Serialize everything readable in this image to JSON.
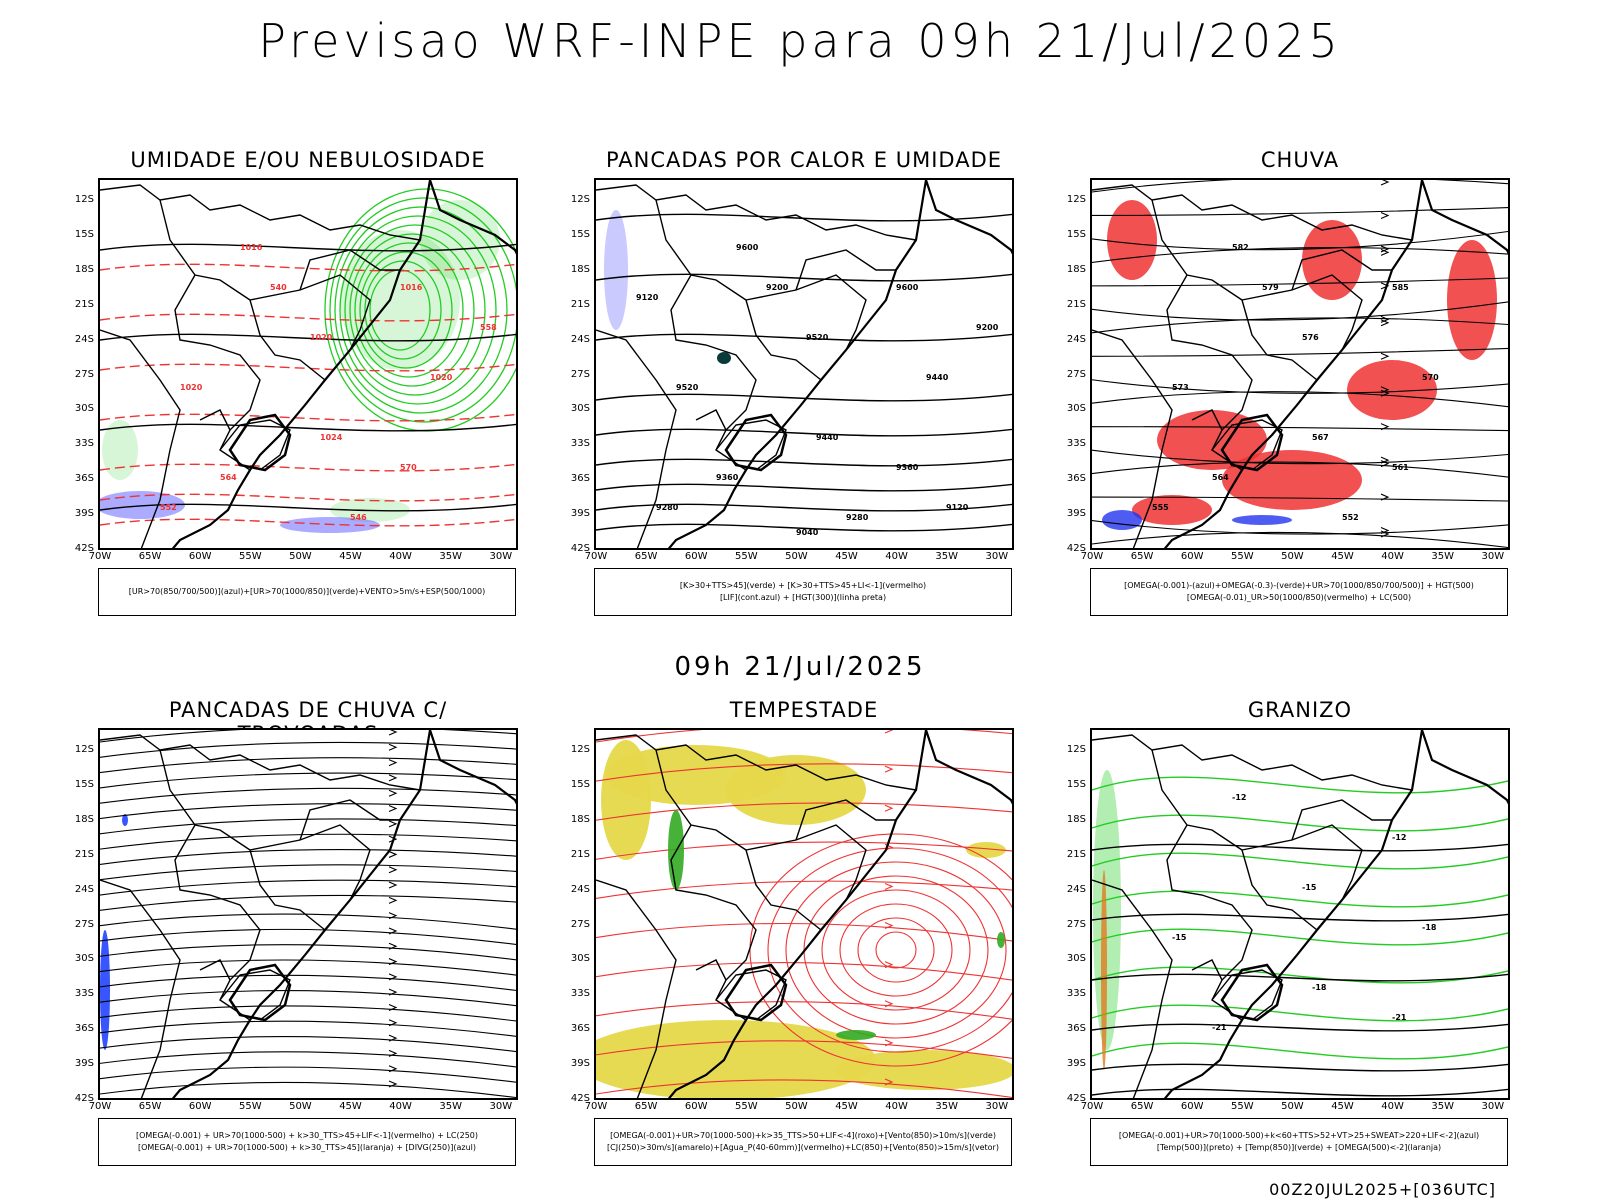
{
  "page_title": "Previsao WRF-INPE  para 09h 21/Jul/2025",
  "mid_title": "09h 21/Jul/2025",
  "footer": "00Z20JUL2025+[036UTC]",
  "lat_labels": [
    "12S",
    "15S",
    "18S",
    "21S",
    "24S",
    "27S",
    "30S",
    "33S",
    "36S",
    "39S",
    "42S"
  ],
  "lon_labels": [
    "70W",
    "65W",
    "60W",
    "55W",
    "50W",
    "45W",
    "40W",
    "35W",
    "30W"
  ],
  "colors": {
    "humidity_green": "#22cc22",
    "hgt_red": "#ee3333",
    "humidity_blue": "#6666ff",
    "convective_yellow": "#e6d84a",
    "streamline_black": "#000000"
  },
  "panels": [
    {
      "key": "umidade",
      "title": "UMIDADE E/OU NEBULOSIDADE",
      "legend": [
        "[UR>70(850/700/500)](azul)+[UR>70(1000/850)](verde)+VENTO>5m/s+ESP(500/1000)"
      ],
      "contour_labels": [
        "1016",
        "1016",
        "1020",
        "1020",
        "1020",
        "1024",
        "564",
        "570",
        "552",
        "546",
        "540",
        "558"
      ]
    },
    {
      "key": "pancadas_calor",
      "title": "PANCADAS POR CALOR E UMIDADE",
      "legend": [
        "[K>30+TTS>45](verde) + [K>30+TTS>45+LI<-1](vermelho)",
        "[LIF](cont.azul) + [HGT(300)](linha preta)"
      ],
      "contour_labels": [
        "9600",
        "9600",
        "9520",
        "9520",
        "9440",
        "9440",
        "9360",
        "9360",
        "9280",
        "9280",
        "9200",
        "9200",
        "9120",
        "9120",
        "9040"
      ]
    },
    {
      "key": "chuva",
      "title": "CHUVA",
      "legend": [
        "[OMEGA(-0.001)-(azul)+OMEGA(-0.3)-(verde)+UR>70(1000/850/700/500)] + HGT(500)",
        "[OMEGA(-0.01)_UR>50(1000/850)(vermelho) + LC(500)"
      ],
      "contour_labels": [
        "582",
        "585",
        "576",
        "573",
        "570",
        "567",
        "564",
        "561",
        "555",
        "552",
        "579"
      ]
    },
    {
      "key": "trovoadas",
      "title": "PANCADAS DE CHUVA C/ TROVOADAS",
      "legend": [
        "[OMEGA(-0.001) + UR>70(1000-500) + k>30_TTS>45+LIF<-1](vermelho) + LC(250)",
        "[OMEGA(-0.001) + UR>70(1000-500) + k>30_TTS>45](laranja) + [DIVG(250)](azul)"
      ],
      "contour_labels": []
    },
    {
      "key": "tempestade",
      "title": "TEMPESTADE",
      "legend": [
        "[OMEGA(-0.001)+UR>70(1000-500)+k>35_TTS>50+LIF<-4](roxo)+[Vento(850)>10m/s](verde)",
        "[CJ(250)>30m/s](amarelo)+[Agua_P(40-60mm)](vermelho)+LC(850)+[Vento(850)>15m/s](vetor)"
      ],
      "contour_labels": []
    },
    {
      "key": "granizo",
      "title": "GRANIZO",
      "legend": [
        "[OMEGA(-0.001)+UR>70(1000-500)+k<60+TTS>52+VT>25+SWEAT>220+LIF<-2](azul)",
        "[Temp(500)](preto) + [Temp(850)](verde) + [OMEGA(500)<-2](laranja)"
      ],
      "contour_labels": [
        "-12",
        "-12",
        "-15",
        "-15",
        "-18",
        "-18",
        "-21",
        "-21"
      ]
    }
  ]
}
